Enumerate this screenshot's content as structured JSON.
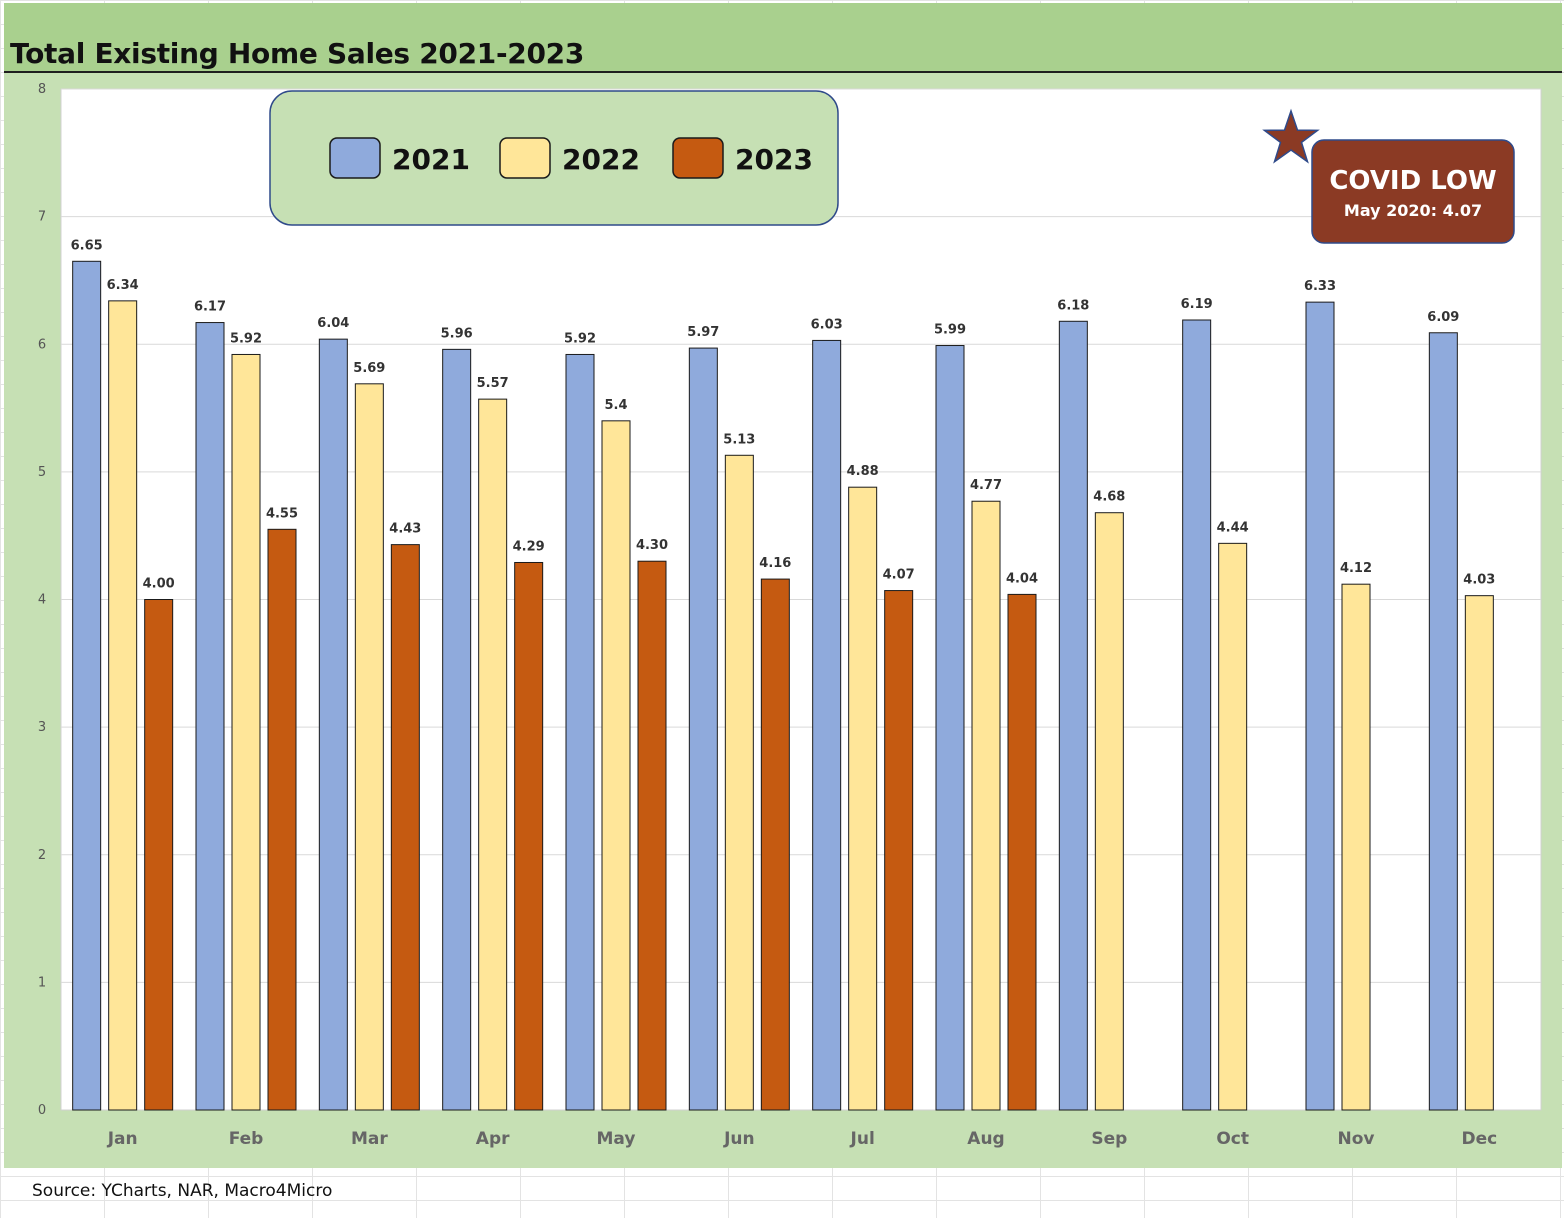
{
  "source_note": "Source: YCharts, NAR, Macro4Micro",
  "annotation": {
    "title": "COVID LOW",
    "subtitle": "May 2020: 4.07",
    "color": "#8b3a24",
    "icon": "star-icon"
  },
  "colors": {
    "title_bar": "#a9d08e",
    "frame": "#c6e0b4",
    "legend_box": "#c6e0b4"
  },
  "chart_data": {
    "type": "bar",
    "title": "Total Existing Home Sales 2021-2023",
    "xlabel": "",
    "ylabel": "",
    "ylim": [
      0,
      8
    ],
    "yticks": [
      0,
      1,
      2,
      3,
      4,
      5,
      6,
      7,
      8
    ],
    "grid": true,
    "legend_position": "top-left",
    "categories": [
      "Jan",
      "Feb",
      "Mar",
      "Apr",
      "May",
      "Jun",
      "Jul",
      "Aug",
      "Sep",
      "Oct",
      "Nov",
      "Dec"
    ],
    "series": [
      {
        "name": "2021",
        "color": "#8faadc",
        "values": [
          6.65,
          6.17,
          6.04,
          5.96,
          5.92,
          5.97,
          6.03,
          5.99,
          6.18,
          6.19,
          6.33,
          6.09
        ],
        "labels": [
          "6.65",
          "6.17",
          "6.04",
          "5.96",
          "5.92",
          "5.97",
          "6.03",
          "5.99",
          "6.18",
          "6.19",
          "6.33",
          "6.09"
        ]
      },
      {
        "name": "2022",
        "color": "#ffe699",
        "values": [
          6.34,
          5.92,
          5.69,
          5.57,
          5.4,
          5.13,
          4.88,
          4.77,
          4.68,
          4.44,
          4.12,
          4.03
        ],
        "labels": [
          "6.34",
          "5.92",
          "5.69",
          "5.57",
          "5.4",
          "5.13",
          "4.88",
          "4.77",
          "4.68",
          "4.44",
          "4.12",
          "4.03"
        ]
      },
      {
        "name": "2023",
        "color": "#c55a11",
        "values": [
          4.0,
          4.55,
          4.43,
          4.29,
          4.3,
          4.16,
          4.07,
          4.04,
          null,
          null,
          null,
          null
        ],
        "labels": [
          "4.00",
          "4.55",
          "4.43",
          "4.29",
          "4.30",
          "4.16",
          "4.07",
          "4.04",
          null,
          null,
          null,
          null
        ]
      }
    ]
  }
}
